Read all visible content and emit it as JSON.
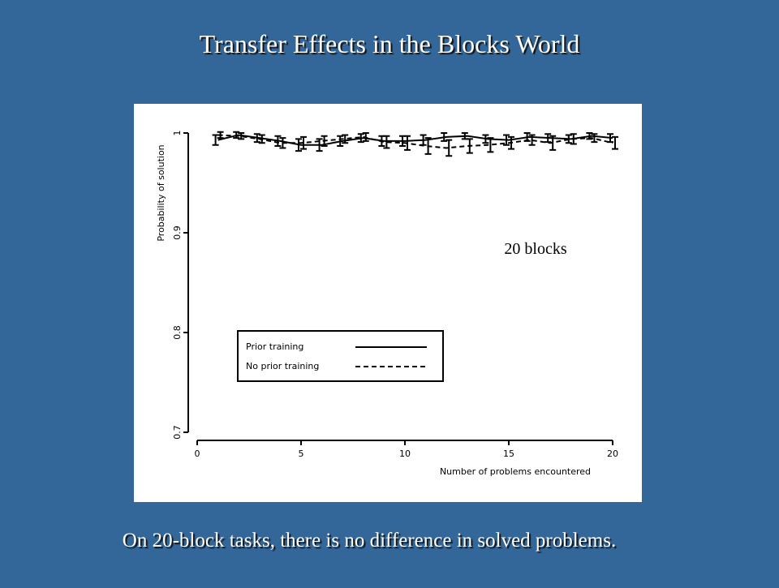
{
  "slide": {
    "title": "Transfer Effects in the Blocks World",
    "caption": "On 20-block tasks, there is no difference in solved problems."
  },
  "chart_data": {
    "type": "line",
    "x": [
      1,
      2,
      3,
      4,
      5,
      6,
      7,
      8,
      9,
      10,
      11,
      12,
      13,
      14,
      15,
      16,
      17,
      18,
      19,
      20
    ],
    "series": [
      {
        "name": "Prior training",
        "color": "#000000",
        "dash": "solid",
        "values": [
          0.993,
          0.998,
          0.995,
          0.992,
          0.988,
          0.988,
          0.992,
          0.995,
          0.992,
          0.992,
          0.993,
          0.996,
          0.997,
          0.994,
          0.993,
          0.996,
          0.995,
          0.994,
          0.997,
          0.995
        ],
        "errors": [
          0.005,
          0.003,
          0.004,
          0.005,
          0.006,
          0.006,
          0.005,
          0.004,
          0.005,
          0.005,
          0.005,
          0.004,
          0.003,
          0.004,
          0.005,
          0.004,
          0.004,
          0.004,
          0.003,
          0.004
        ]
      },
      {
        "name": "No prior training",
        "color": "#000000",
        "dash": "dashed",
        "values": [
          0.998,
          0.997,
          0.994,
          0.99,
          0.99,
          0.992,
          0.994,
          0.996,
          0.991,
          0.99,
          0.987,
          0.985,
          0.987,
          0.988,
          0.99,
          0.993,
          0.99,
          0.994,
          0.995,
          0.99
        ],
        "errors": [
          0.003,
          0.003,
          0.004,
          0.005,
          0.006,
          0.005,
          0.004,
          0.004,
          0.006,
          0.007,
          0.008,
          0.008,
          0.007,
          0.007,
          0.006,
          0.005,
          0.007,
          0.005,
          0.004,
          0.006
        ]
      }
    ],
    "xlim": [
      0,
      20
    ],
    "ylim": [
      0.7,
      1.0
    ],
    "xticks": [
      0,
      5,
      10,
      15,
      20
    ],
    "yticks": [
      0.7,
      0.8,
      0.9,
      1
    ],
    "x_label": "Number of problems encountered",
    "y_label": "Probability of solution",
    "annotation": "20 blocks",
    "legend": "bottom-left"
  }
}
